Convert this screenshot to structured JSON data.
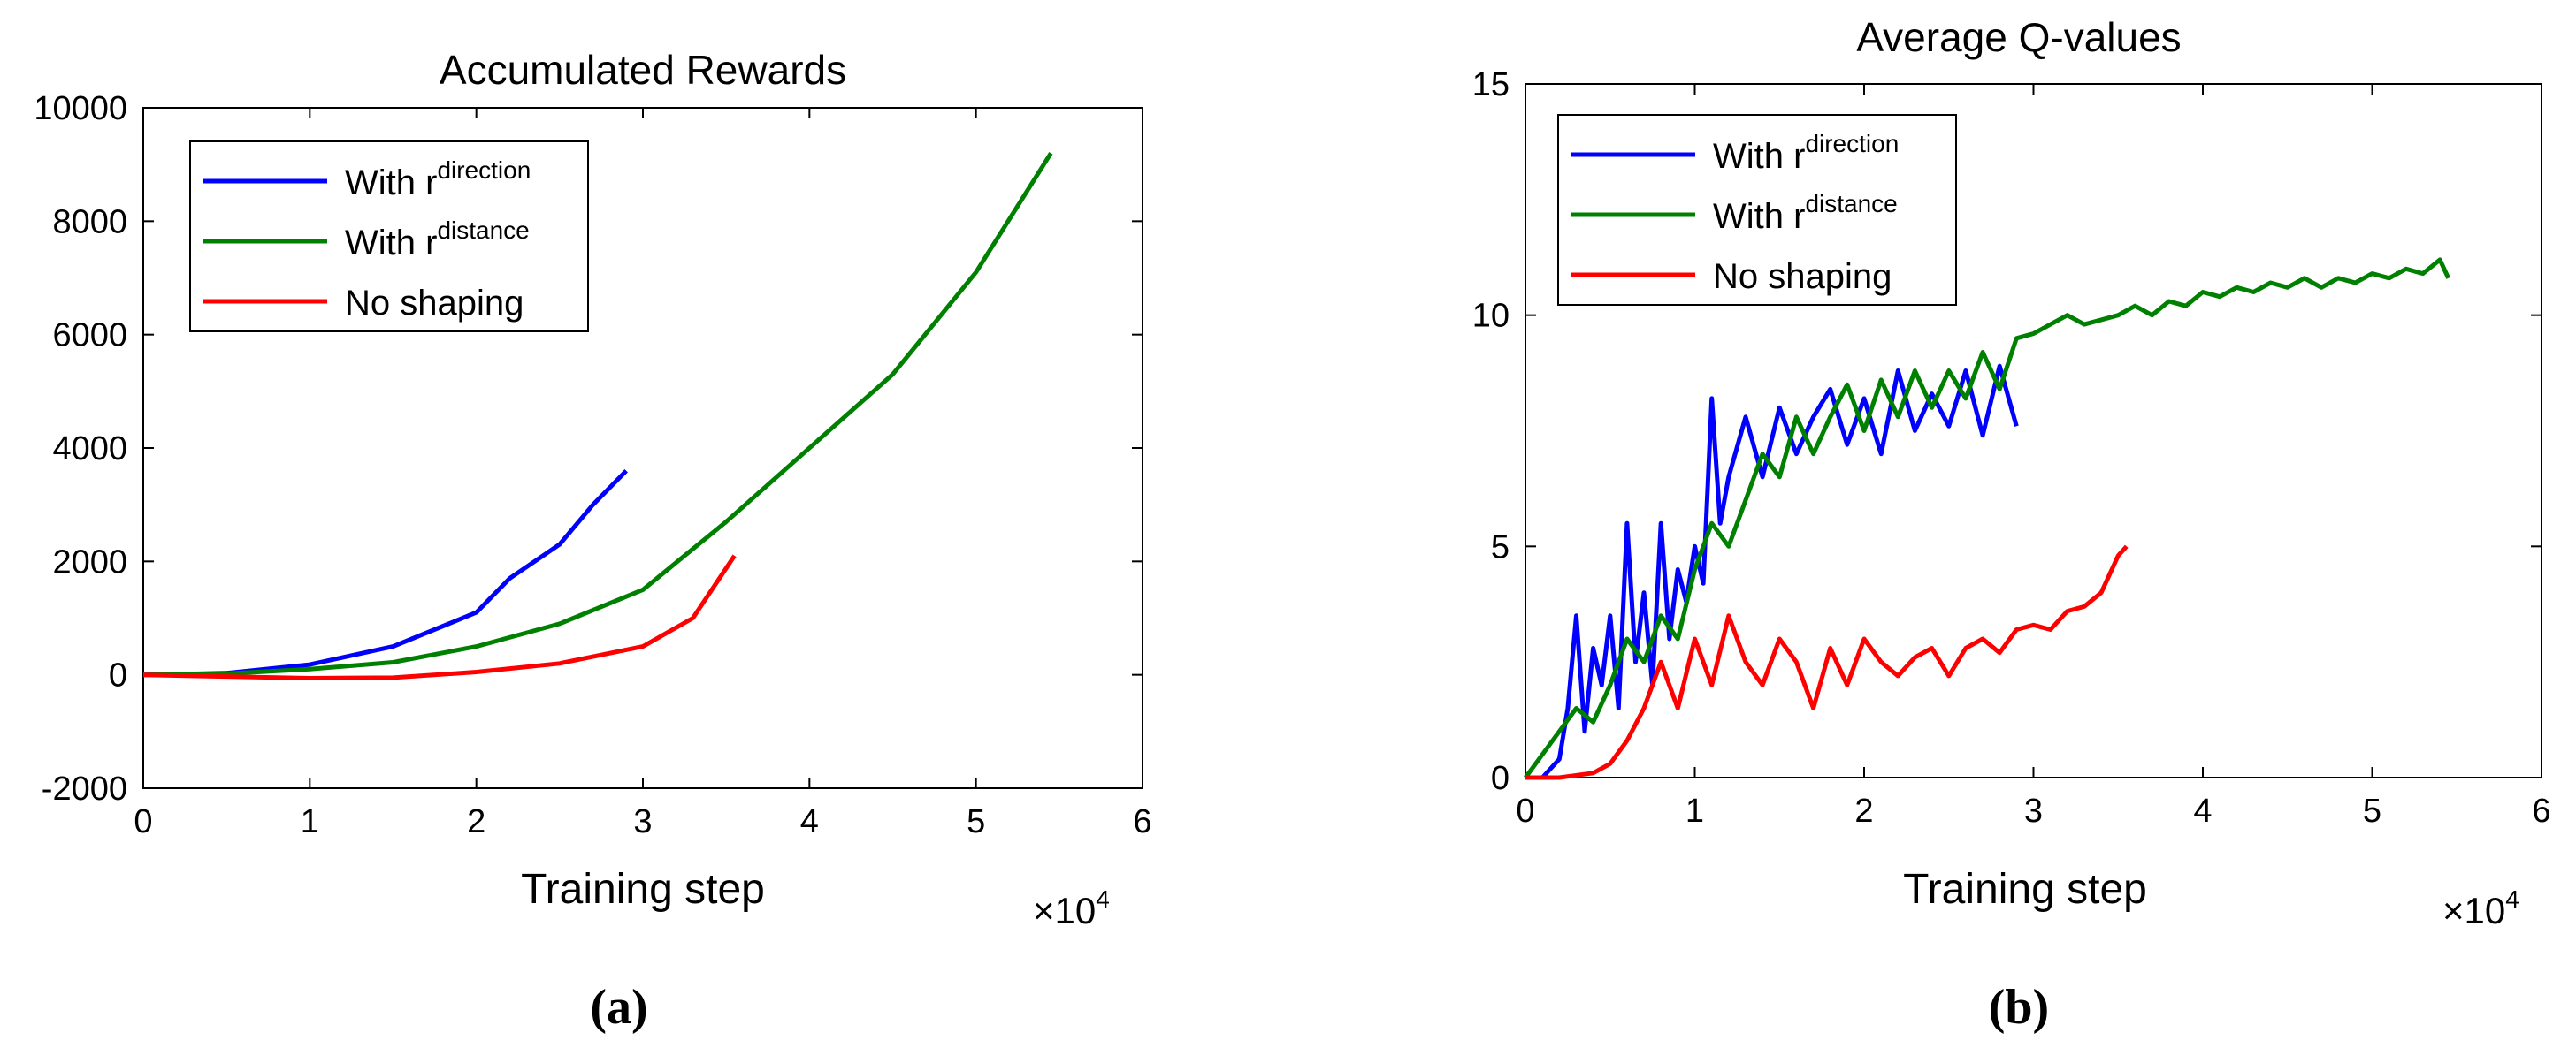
{
  "chart_data": [
    {
      "type": "line",
      "title": "Accumulated Rewards",
      "xlabel": "Training step",
      "ylabel": "",
      "x_multiplier_label": "×10",
      "x_multiplier_exp": "4",
      "xlim": [
        0,
        6
      ],
      "ylim": [
        -2000,
        10000
      ],
      "xticks": [
        "0",
        "1",
        "2",
        "3",
        "4",
        "5",
        "6"
      ],
      "yticks": [
        "-2000",
        "0",
        "2000",
        "4000",
        "6000",
        "8000",
        "10000"
      ],
      "legend_position": "top-left",
      "caption": "(a)",
      "series": [
        {
          "name": "With r",
          "superscript": "direction",
          "color": "#0000ff",
          "x": [
            0,
            0.5,
            1.0,
            1.5,
            2.0,
            2.2,
            2.5,
            2.7,
            2.9
          ],
          "y": [
            0,
            30,
            180,
            500,
            1100,
            1700,
            2300,
            3000,
            3600
          ]
        },
        {
          "name": "With r",
          "superscript": "distance",
          "color": "#008000",
          "x": [
            0,
            0.5,
            1.0,
            1.5,
            2.0,
            2.5,
            3.0,
            3.5,
            4.0,
            4.5,
            5.0,
            5.45
          ],
          "y": [
            0,
            20,
            100,
            220,
            500,
            900,
            1500,
            2700,
            4000,
            5300,
            7100,
            9200
          ]
        },
        {
          "name": "No shaping",
          "superscript": "",
          "color": "#ff0000",
          "x": [
            0,
            0.5,
            1.0,
            1.5,
            2.0,
            2.5,
            3.0,
            3.3,
            3.55
          ],
          "y": [
            0,
            -30,
            -60,
            -50,
            50,
            200,
            500,
            1000,
            2100
          ]
        }
      ]
    },
    {
      "type": "line",
      "title": "Average Q-values",
      "xlabel": "Training step",
      "ylabel": "",
      "x_multiplier_label": "×10",
      "x_multiplier_exp": "4",
      "xlim": [
        0,
        6
      ],
      "ylim": [
        0,
        15
      ],
      "xticks": [
        "0",
        "1",
        "2",
        "3",
        "4",
        "5",
        "6"
      ],
      "yticks": [
        "0",
        "5",
        "10",
        "15"
      ],
      "legend_position": "top-left",
      "caption": "(b)",
      "series": [
        {
          "name": "With r",
          "superscript": "direction",
          "color": "#0000ff",
          "x": [
            0,
            0.1,
            0.15,
            0.2,
            0.25,
            0.3,
            0.35,
            0.4,
            0.45,
            0.5,
            0.55,
            0.6,
            0.65,
            0.7,
            0.75,
            0.8,
            0.85,
            0.9,
            0.95,
            1.0,
            1.05,
            1.1,
            1.15,
            1.2,
            1.3,
            1.4,
            1.5,
            1.6,
            1.7,
            1.8,
            1.9,
            2.0,
            2.1,
            2.2,
            2.3,
            2.4,
            2.5,
            2.6,
            2.7,
            2.8,
            2.9
          ],
          "y": [
            0,
            0,
            0.2,
            0.4,
            1.5,
            3.5,
            1.0,
            2.8,
            2.0,
            3.5,
            1.5,
            5.5,
            2.5,
            4.0,
            2.0,
            5.5,
            3.0,
            4.5,
            3.8,
            5.0,
            4.2,
            8.2,
            5.5,
            6.5,
            7.8,
            6.5,
            8.0,
            7.0,
            7.8,
            8.4,
            7.2,
            8.2,
            7.0,
            8.8,
            7.5,
            8.3,
            7.6,
            8.8,
            7.4,
            8.9,
            7.6
          ]
        },
        {
          "name": "With r",
          "superscript": "distance",
          "color": "#008000",
          "x": [
            0,
            0.1,
            0.2,
            0.3,
            0.4,
            0.5,
            0.6,
            0.7,
            0.8,
            0.9,
            1.0,
            1.1,
            1.2,
            1.3,
            1.4,
            1.5,
            1.6,
            1.7,
            1.8,
            1.9,
            2.0,
            2.1,
            2.2,
            2.3,
            2.4,
            2.5,
            2.6,
            2.7,
            2.8,
            2.9,
            3.0,
            3.1,
            3.2,
            3.3,
            3.4,
            3.5,
            3.6,
            3.7,
            3.8,
            3.9,
            4.0,
            4.1,
            4.2,
            4.3,
            4.4,
            4.5,
            4.6,
            4.7,
            4.8,
            4.9,
            5.0,
            5.1,
            5.2,
            5.3,
            5.4,
            5.45
          ],
          "y": [
            0,
            0.5,
            1.0,
            1.5,
            1.2,
            2.0,
            3.0,
            2.5,
            3.5,
            3.0,
            4.5,
            5.5,
            5.0,
            6.0,
            7.0,
            6.5,
            7.8,
            7.0,
            7.8,
            8.5,
            7.5,
            8.6,
            7.8,
            8.8,
            8.0,
            8.8,
            8.2,
            9.2,
            8.4,
            9.5,
            9.6,
            9.8,
            10.0,
            9.8,
            9.9,
            10.0,
            10.2,
            10.0,
            10.3,
            10.2,
            10.5,
            10.4,
            10.6,
            10.5,
            10.7,
            10.6,
            10.8,
            10.6,
            10.8,
            10.7,
            10.9,
            10.8,
            11.0,
            10.9,
            11.2,
            10.8
          ]
        },
        {
          "name": "No shaping",
          "superscript": "",
          "color": "#ff0000",
          "x": [
            0,
            0.2,
            0.4,
            0.5,
            0.6,
            0.7,
            0.8,
            0.9,
            1.0,
            1.1,
            1.2,
            1.3,
            1.4,
            1.5,
            1.6,
            1.7,
            1.8,
            1.9,
            2.0,
            2.1,
            2.2,
            2.3,
            2.4,
            2.5,
            2.6,
            2.7,
            2.8,
            2.9,
            3.0,
            3.1,
            3.2,
            3.3,
            3.4,
            3.5,
            3.55
          ],
          "y": [
            0,
            0,
            0.1,
            0.3,
            0.8,
            1.5,
            2.5,
            1.5,
            3.0,
            2.0,
            3.5,
            2.5,
            2.0,
            3.0,
            2.5,
            1.5,
            2.8,
            2.0,
            3.0,
            2.5,
            2.2,
            2.6,
            2.8,
            2.2,
            2.8,
            3.0,
            2.7,
            3.2,
            3.3,
            3.2,
            3.6,
            3.7,
            4.0,
            4.8,
            5.0
          ]
        }
      ]
    }
  ]
}
